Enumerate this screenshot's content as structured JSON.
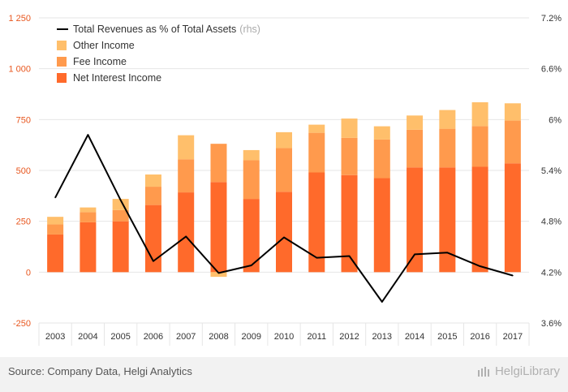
{
  "chart_data": {
    "type": "bar",
    "stacked": true,
    "categories": [
      "2003",
      "2004",
      "2005",
      "2006",
      "2007",
      "2008",
      "2009",
      "2010",
      "2011",
      "2012",
      "2013",
      "2014",
      "2015",
      "2016",
      "2017"
    ],
    "series": [
      {
        "name": "Net Interest Income",
        "color": "#ff6a2b",
        "values": [
          185,
          245,
          250,
          330,
          392,
          443,
          360,
          395,
          490,
          477,
          462,
          515,
          515,
          518,
          535
        ]
      },
      {
        "name": "Fee Income",
        "color": "#ff9a4d",
        "values": [
          50,
          50,
          55,
          90,
          163,
          188,
          190,
          215,
          195,
          183,
          190,
          185,
          190,
          200,
          210
        ]
      },
      {
        "name": "Other Income",
        "color": "#ffbf6b",
        "values": [
          37,
          23,
          55,
          60,
          118,
          -23,
          50,
          78,
          40,
          95,
          65,
          70,
          92,
          117,
          85
        ]
      }
    ],
    "line_series": {
      "name": "Total Revenues as % of Total Assets",
      "axis": "rhs",
      "color": "#000000",
      "values": [
        5.08,
        5.82,
        5.05,
        4.33,
        4.62,
        4.19,
        4.28,
        4.61,
        4.37,
        4.39,
        3.85,
        4.41,
        4.43,
        4.27,
        4.16
      ]
    },
    "ylim": [
      -250,
      1250
    ],
    "yticks": [
      "-250",
      "0",
      "250",
      "500",
      "750",
      "1 000",
      "1 250"
    ],
    "y2lim": [
      3.6,
      7.2
    ],
    "y2ticks": [
      "3.6%",
      "4.2%",
      "4.8%",
      "5.4%",
      "6%",
      "6.6%",
      "7.2%"
    ],
    "legend_placement": "top-left",
    "grid": true
  },
  "legend": {
    "line_label": "Total Revenues as % of Total Assets",
    "rhs_tag": "(rhs)",
    "other_label": "Other Income",
    "fee_label": "Fee Income",
    "nii_label": "Net Interest Income"
  },
  "footer": {
    "source": "Source: Company Data, Helgi Analytics",
    "brand": "HelgiLibrary"
  }
}
